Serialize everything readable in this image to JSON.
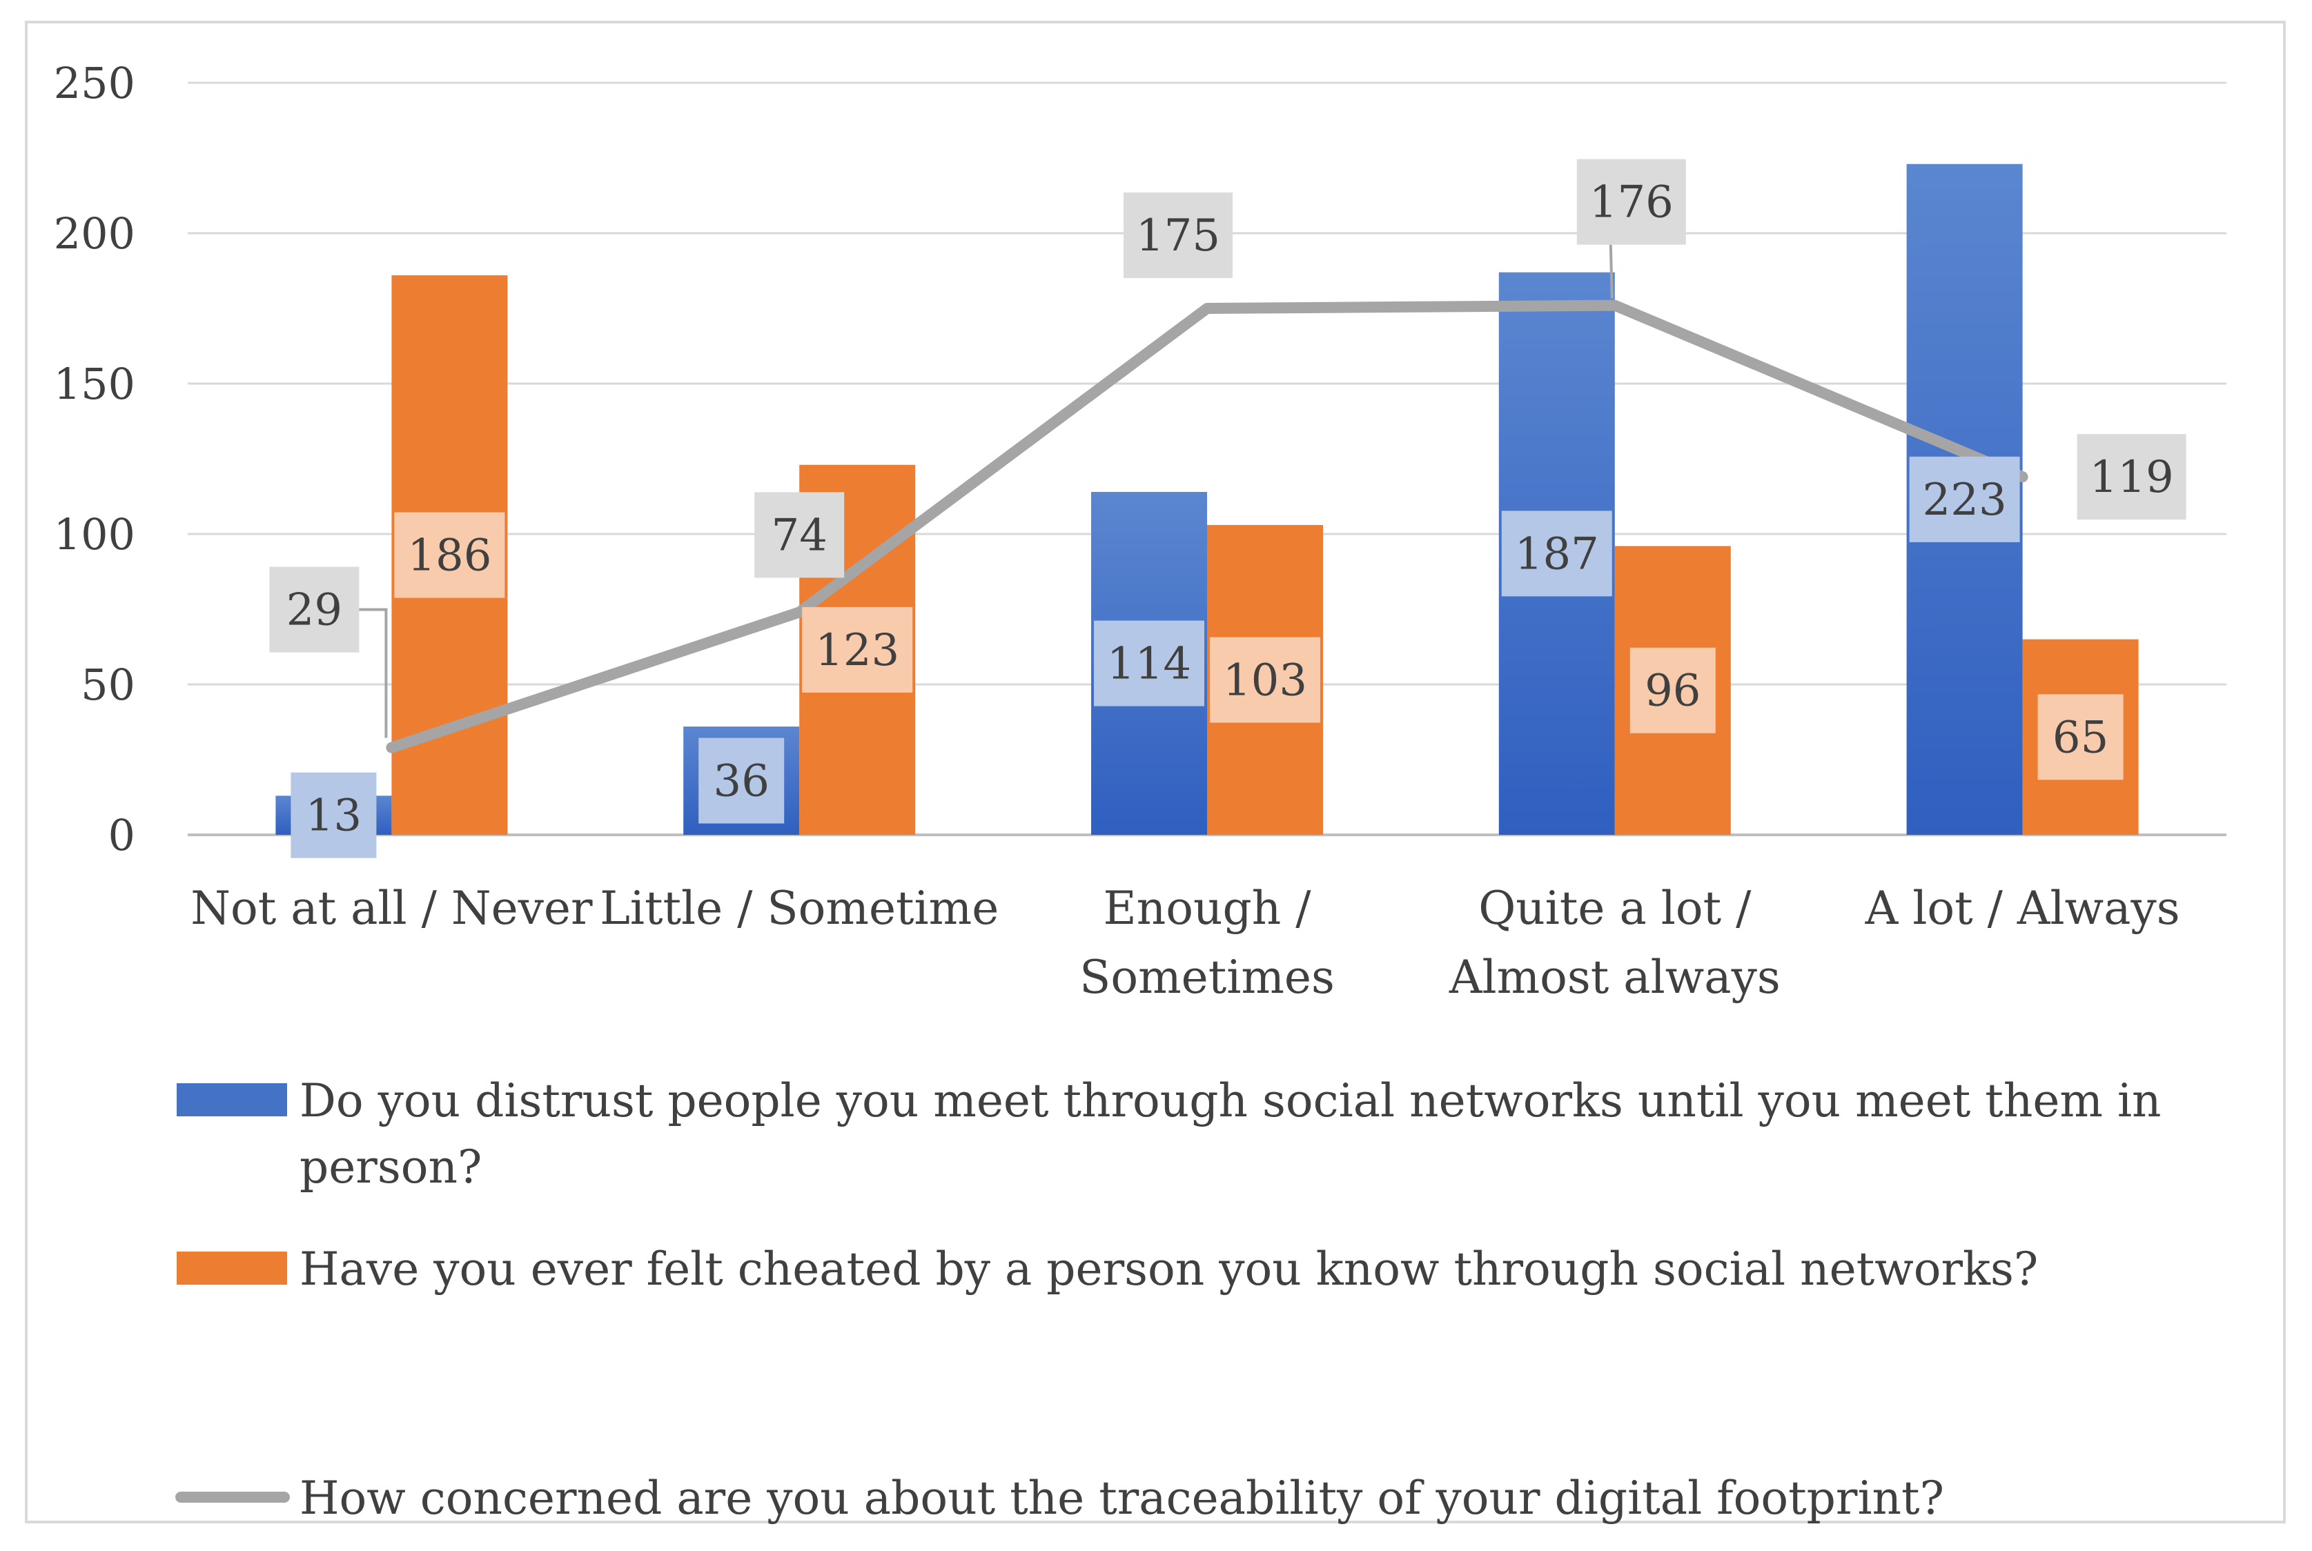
{
  "chart_data": {
    "type": "bar",
    "title": "",
    "xlabel": "",
    "ylabel": "",
    "ylim": [
      0,
      250
    ],
    "yticks": [
      0,
      50,
      100,
      150,
      200,
      250
    ],
    "grid": true,
    "legend_position": "bottom",
    "categories": [
      [
        "Not at all / Never"
      ],
      [
        "Little / Sometime"
      ],
      [
        "Enough /",
        "Sometimes"
      ],
      [
        "Quite a lot /",
        "Almost always"
      ],
      [
        "A lot / Always"
      ]
    ],
    "series": [
      {
        "name": "Do you distrust people you meet through social networks until you meet them in person?",
        "legend_lines": [
          "Do you distrust people you meet through social networks until you meet them in",
          "person?"
        ],
        "kind": "bar",
        "color": "#4472c4",
        "label_bg": "#b4c7e7",
        "values": [
          13,
          36,
          114,
          187,
          223
        ]
      },
      {
        "name": "Have you ever felt cheated by a person you know through social networks?",
        "legend_lines": [
          "Have you ever felt cheated by a person you know through social networks?"
        ],
        "kind": "bar",
        "color": "#ed7d31",
        "label_bg": "#f8cbad",
        "values": [
          186,
          123,
          103,
          96,
          65
        ]
      },
      {
        "name": "How concerned are you about the traceability of your digital footprint?",
        "legend_lines": [
          "How concerned are you about the traceability of your digital footprint?"
        ],
        "kind": "line",
        "color": "#a5a5a5",
        "label_bg": "#dbdbdb",
        "values": [
          29,
          74,
          175,
          176,
          119
        ]
      }
    ]
  }
}
